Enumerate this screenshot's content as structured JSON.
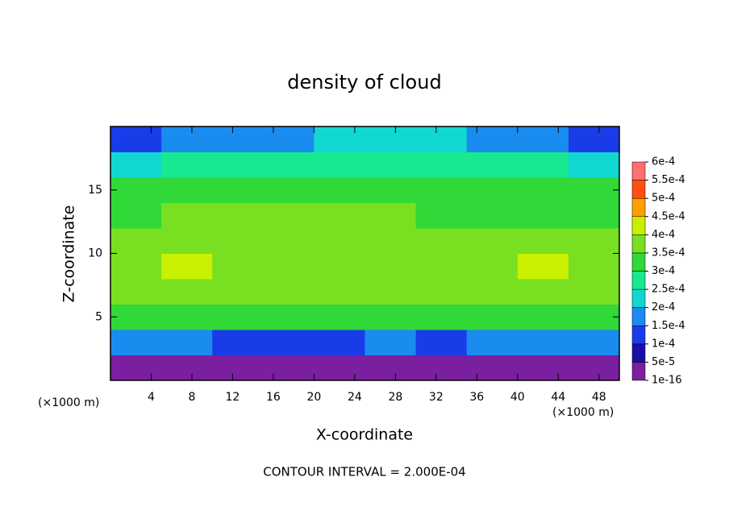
{
  "chart_data": {
    "type": "heatmap",
    "title": "density of cloud",
    "x_label": "X-coordinate",
    "y_label": "Z-coordinate",
    "x_unit_left": "(×1000 m)",
    "x_unit_right": "(×1000 m)",
    "footer": "CONTOUR INTERVAL = 2.000E-04",
    "xlim": [
      0,
      50
    ],
    "ylim": [
      0,
      20
    ],
    "xticks": [
      4,
      8,
      12,
      16,
      20,
      24,
      28,
      32,
      36,
      40,
      44,
      48
    ],
    "yticks": [
      5,
      10,
      15
    ],
    "x": [
      2.5,
      7.5,
      12.5,
      17.5,
      22.5,
      27.5,
      32.5,
      37.5,
      42.5,
      47.5
    ],
    "y": [
      1,
      3,
      5,
      7,
      9,
      11,
      13,
      15,
      17,
      19
    ],
    "values": [
      [
        3e-05,
        4e-05,
        4e-05,
        3e-05,
        4e-05,
        4e-05,
        4e-05,
        4e-05,
        4e-05,
        4e-05
      ],
      [
        0.00017,
        0.00016,
        0.00014,
        0.00012,
        0.00013,
        0.00015,
        0.00014,
        0.00016,
        0.00017,
        0.00017
      ],
      [
        0.00033,
        0.00034,
        0.00031,
        0.00032,
        0.00031,
        0.00032,
        0.00031,
        0.00033,
        0.00034,
        0.00034
      ],
      [
        0.00036,
        0.00038,
        0.00036,
        0.00035,
        0.00036,
        0.00035,
        0.00036,
        0.00037,
        0.00039,
        0.00037
      ],
      [
        0.00038,
        0.00041,
        0.00039,
        0.00036,
        0.00037,
        0.00036,
        0.00036,
        0.00038,
        0.00041,
        0.00038
      ],
      [
        0.00036,
        0.00039,
        0.00037,
        0.00037,
        0.00036,
        0.00036,
        0.00035,
        0.00036,
        0.00038,
        0.00037
      ],
      [
        0.00034,
        0.00035,
        0.00035,
        0.00036,
        0.00036,
        0.00035,
        0.00033,
        0.00032,
        0.00034,
        0.00034
      ],
      [
        0.00031,
        0.00032,
        0.00033,
        0.00033,
        0.00034,
        0.00033,
        0.00031,
        0.0003,
        0.00031,
        0.00031
      ],
      [
        0.00024,
        0.00026,
        0.00027,
        0.00028,
        0.00029,
        0.00029,
        0.00027,
        0.00026,
        0.00025,
        0.00024
      ],
      [
        0.00014,
        0.00016,
        0.00018,
        0.00019,
        0.0002,
        0.00021,
        0.0002,
        0.00018,
        0.00016,
        0.00014
      ]
    ],
    "colorbar_ticks": [
      {
        "value": 1e-16,
        "label": "1e-16"
      },
      {
        "value": 5e-05,
        "label": "5e-5"
      },
      {
        "value": 0.0001,
        "label": "1e-4"
      },
      {
        "value": 0.00015,
        "label": "1.5e-4"
      },
      {
        "value": 0.0002,
        "label": "2e-4"
      },
      {
        "value": 0.00025,
        "label": "2.5e-4"
      },
      {
        "value": 0.0003,
        "label": "3e-4"
      },
      {
        "value": 0.00035,
        "label": "3.5e-4"
      },
      {
        "value": 0.0004,
        "label": "4e-4"
      },
      {
        "value": 0.00045,
        "label": "4.5e-4"
      },
      {
        "value": 0.0005,
        "label": "5e-4"
      },
      {
        "value": 0.00055,
        "label": "5.5e-4"
      },
      {
        "value": 0.0006,
        "label": "6e-4"
      }
    ],
    "colors": [
      "#7a1fa0",
      "#1a10a8",
      "#1a3ce8",
      "#1a8cf0",
      "#10d8d0",
      "#18e890",
      "#30d838",
      "#78e020",
      "#c8f000",
      "#ffa000",
      "#ff5010",
      "#ff7070"
    ]
  }
}
